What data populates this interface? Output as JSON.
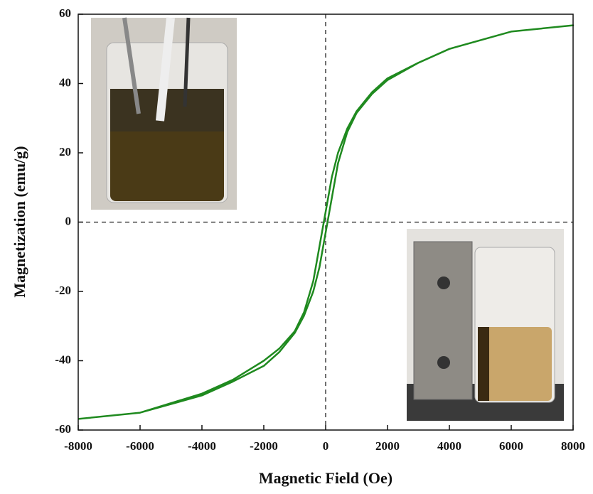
{
  "chart_data": {
    "type": "line",
    "xlabel": "Magnetic Field (Oe)",
    "ylabel": "Magnetization (emu/g)",
    "x": [
      -8000,
      -6000,
      -4000,
      -3000,
      -2000,
      -1500,
      -1000,
      -700,
      -400,
      -200,
      0,
      200,
      400,
      700,
      1000,
      1500,
      2000,
      3000,
      4000,
      6000,
      8000,
      6000,
      4000,
      3000,
      2000,
      1500,
      1000,
      700,
      400,
      200,
      0,
      -200,
      -400,
      -700,
      -1000,
      -1500,
      -2000,
      -3000,
      -4000,
      -6000,
      -8000
    ],
    "values": [
      -56.8,
      -55,
      -49.5,
      -45.5,
      -40,
      -36.5,
      -31.5,
      -26,
      -17,
      -7,
      3,
      13,
      20,
      27,
      32,
      37.5,
      41.5,
      46,
      50,
      55,
      56.8,
      55,
      50,
      46,
      41,
      37,
      31.5,
      26,
      17,
      7,
      -3,
      -13,
      -20,
      -27,
      -32,
      -37.5,
      -41.5,
      -46,
      -50,
      -55,
      -56.8
    ],
    "color": "#1f8a1f",
    "xlim": [
      -8000,
      8000
    ],
    "xticks": [
      -8000,
      -6000,
      -4000,
      -2000,
      0,
      2000,
      4000,
      6000,
      8000
    ],
    "ylim": [
      -60,
      60
    ],
    "yticks": [
      -60,
      -40,
      -20,
      0,
      20,
      40,
      60
    ]
  }
}
